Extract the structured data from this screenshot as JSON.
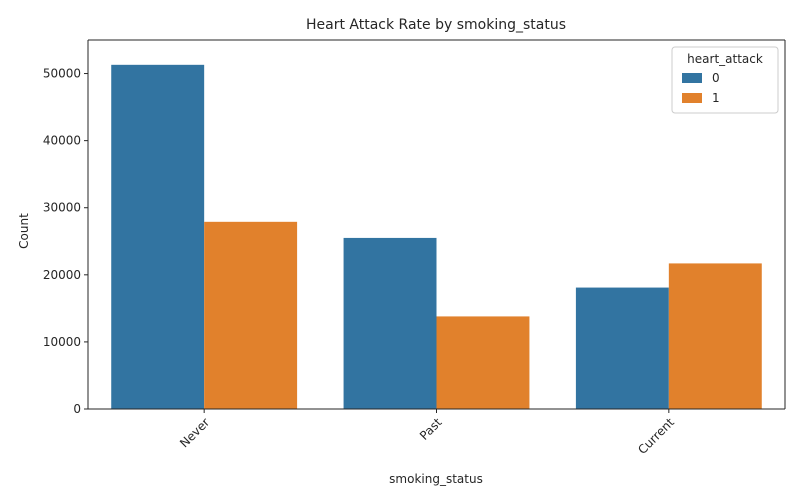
{
  "chart_data": {
    "type": "bar",
    "title": "Heart Attack Rate by smoking_status",
    "xlabel": "smoking_status",
    "ylabel": "Count",
    "categories": [
      "Never",
      "Past",
      "Current"
    ],
    "series": [
      {
        "name": "0",
        "values": [
          51300,
          25500,
          18100
        ],
        "color": "#3274a1"
      },
      {
        "name": "1",
        "values": [
          27900,
          13800,
          21700
        ],
        "color": "#e1812c"
      }
    ],
    "ylim": [
      0,
      55000
    ],
    "yticks": [
      0,
      10000,
      20000,
      30000,
      40000,
      50000
    ],
    "grid": false,
    "legend": {
      "title": "heart_attack",
      "placement": "top-right"
    },
    "xtick_rotation": 45
  }
}
